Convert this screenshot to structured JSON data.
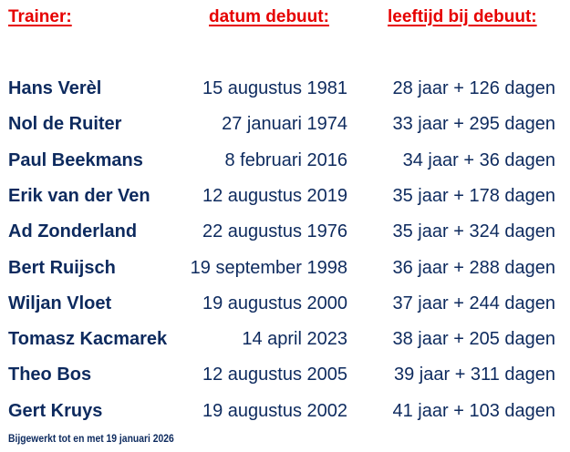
{
  "headers": {
    "trainer": "Trainer:",
    "date": "datum debuut:",
    "age": "leeftijd bij debuut:"
  },
  "colors": {
    "header": "#e60000",
    "text": "#0d2a5e"
  },
  "rows": [
    {
      "name": "Hans Verèl",
      "date": "15 augustus 1981",
      "age": "28 jaar + 126 dagen"
    },
    {
      "name": "Nol de Ruiter",
      "date": "27 januari 1974",
      "age": "33 jaar + 295 dagen"
    },
    {
      "name": "Paul Beekmans",
      "date": "8 februari 2016",
      "age": "34 jaar + 36 dagen"
    },
    {
      "name": "Erik van der Ven",
      "date": "12 augustus 2019",
      "age": "35 jaar + 178 dagen"
    },
    {
      "name": "Ad Zonderland",
      "date": "22 augustus 1976",
      "age": "35 jaar + 324 dagen"
    },
    {
      "name": "Bert Ruijsch",
      "date": "19 september 1998",
      "age": "36 jaar + 288 dagen"
    },
    {
      "name": "Wiljan Vloet",
      "date": "19 augustus 2000",
      "age": "37 jaar + 244 dagen"
    },
    {
      "name": "Tomasz Kacmarek",
      "date": "14 april 2023",
      "age": "38 jaar + 205 dagen"
    },
    {
      "name": "Theo Bos",
      "date": "12 augustus 2005",
      "age": "39 jaar + 311 dagen"
    },
    {
      "name": "Gert Kruys",
      "date": "19 augustus 2002",
      "age": "41 jaar + 103 dagen"
    }
  ],
  "footer": "Bijgewerkt tot en met 19 januari 2026"
}
